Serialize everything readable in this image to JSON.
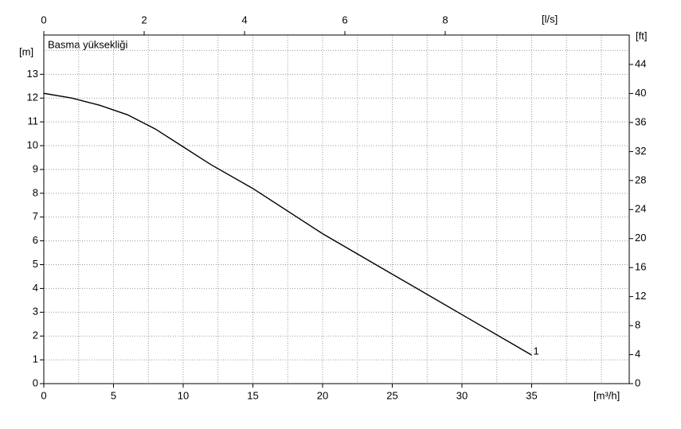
{
  "chart_data": {
    "type": "line",
    "title": "Basma yüksekliği",
    "x_label": "[m³/h]",
    "y_label": "[m]",
    "y2_label": "[ft]",
    "x2_label": "[l/s]",
    "x": [
      0,
      2,
      4,
      6,
      8,
      10,
      12,
      15,
      20,
      25,
      30,
      35
    ],
    "series": [
      {
        "name": "1",
        "color": "#000000",
        "values": [
          12.2,
          12.0,
          11.7,
          11.3,
          10.7,
          9.95,
          9.2,
          8.2,
          6.3,
          4.6,
          2.9,
          1.2
        ]
      }
    ],
    "xlim": [
      0,
      42
    ],
    "xticks": [
      0,
      5,
      10,
      15,
      20,
      25,
      30,
      35
    ],
    "ylim": [
      0,
      14.65
    ],
    "yticks": [
      0,
      1,
      2,
      3,
      4,
      5,
      6,
      7,
      8,
      9,
      10,
      11,
      12,
      13
    ],
    "y2lim": [
      0,
      48.06
    ],
    "y2ticks": [
      0,
      4,
      8,
      12,
      16,
      20,
      24,
      28,
      32,
      36,
      40,
      44
    ],
    "x2lim": [
      0,
      11.667
    ],
    "x2ticks": [
      0,
      2,
      4,
      6,
      8
    ],
    "grid": true
  }
}
